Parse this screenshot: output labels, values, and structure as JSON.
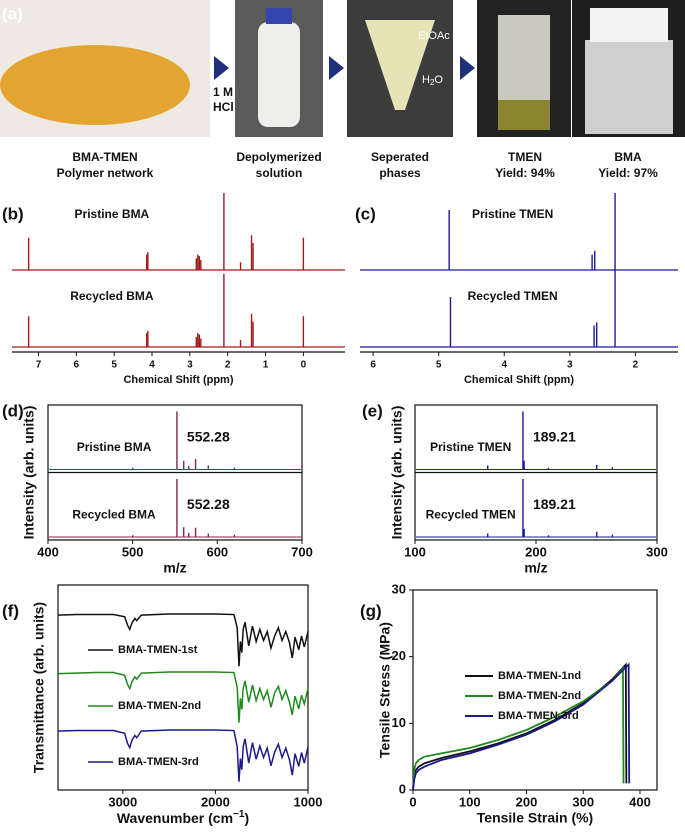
{
  "panel_a": {
    "label": "(a)",
    "reagent": [
      "1 M",
      "HCl"
    ],
    "phases": {
      "top": "EtOAc",
      "bottom": [
        "H",
        "2",
        "O"
      ]
    },
    "captions": [
      [
        "BMA-TMEN",
        "Polymer network"
      ],
      [
        "Depolymerized",
        "solution"
      ],
      [
        "Seperated",
        "phases"
      ],
      [
        "TMEN",
        "Yield: 94%"
      ],
      [
        "BMA",
        "Yield: 97%"
      ]
    ]
  },
  "chart_data": [
    {
      "type": "nmr",
      "panel": "(b)",
      "xlabel": "Chemical Shift (ppm)",
      "xlim": [
        7.7,
        -1.1
      ],
      "xticks": [
        7,
        6,
        5,
        4,
        3,
        2,
        1,
        0
      ],
      "series": [
        {
          "name": "Pristine BMA",
          "color": "#a11a1a",
          "x": [
            7.26,
            4.14,
            4.11,
            2.83,
            2.79,
            2.75,
            2.71,
            2.1,
            1.66,
            1.37,
            1.33,
            0
          ],
          "values": [
            0.42,
            0.2,
            0.23,
            0.15,
            0.2,
            0.18,
            0.13,
            1,
            0.1,
            0.45,
            0.35,
            0.42
          ]
        },
        {
          "name": "Recycled BMA",
          "color": "#a11a1a",
          "x": [
            7.26,
            4.14,
            4.11,
            2.83,
            2.79,
            2.75,
            2.71,
            2.1,
            1.66,
            1.37,
            1.33,
            0
          ],
          "values": [
            0.4,
            0.18,
            0.21,
            0.13,
            0.18,
            0.16,
            0.11,
            0.95,
            0.09,
            0.43,
            0.33,
            0.4
          ]
        }
      ]
    },
    {
      "type": "nmr",
      "panel": "(c)",
      "xlabel": "Chemical Shift (ppm)",
      "xlim": [
        6.2,
        1.35
      ],
      "xticks": [
        6,
        5,
        4,
        3,
        2
      ],
      "series": [
        {
          "name": "Pristine TMEN",
          "color": "#1a1a9a",
          "x": [
            4.84,
            2.66,
            2.62,
            2.31
          ],
          "values": [
            0.78,
            0.2,
            0.25,
            1
          ]
        },
        {
          "name": "Recycled TMEN",
          "color": "#1a1a9a",
          "x": [
            4.82,
            2.63,
            2.59,
            2.31
          ],
          "values": [
            0.65,
            0.28,
            0.32,
            1
          ]
        }
      ]
    },
    {
      "type": "ms",
      "panel": "(d)",
      "xlabel": "m/z",
      "ylabel": "Intensity (arb. units)",
      "xlim": [
        400,
        700
      ],
      "xticks": [
        400,
        500,
        600,
        700
      ],
      "series": [
        {
          "name": "Pristine BMA",
          "color": "#8b2252",
          "label": "552.28",
          "x": [
            552.28,
            560.3,
            566.2,
            574.3,
            589.3,
            620.2,
            500.1
          ],
          "values": [
            1,
            0.15,
            0.06,
            0.18,
            0.07,
            0.03,
            0.03
          ]
        },
        {
          "name": "Recycled BMA",
          "color": "#8b2252",
          "label": "552.28",
          "x": [
            552.28,
            560.3,
            566.2,
            574.3,
            589.3,
            620.2,
            500.1
          ],
          "values": [
            1,
            0.17,
            0.07,
            0.16,
            0.06,
            0.04,
            0.03
          ]
        }
      ]
    },
    {
      "type": "ms",
      "panel": "(e)",
      "xlabel": "m/z",
      "ylabel": "Intensity (arb. units)",
      "xlim": [
        100,
        300
      ],
      "xticks": [
        100,
        200,
        300
      ],
      "series": [
        {
          "name": "Pristine TMEN",
          "color": "#1a1a9a",
          "label": "189.21",
          "x": [
            189.21,
            160.1,
            190.2,
            250.2,
            263.1,
            210.3
          ],
          "values": [
            1,
            0.07,
            0.15,
            0.08,
            0.04,
            0.03
          ]
        },
        {
          "name": "Recycled TMEN",
          "color": "#1a1a9a",
          "label": "189.21",
          "x": [
            189.21,
            160.1,
            190.2,
            250.2,
            263.1,
            210.3
          ],
          "values": [
            1,
            0.06,
            0.14,
            0.09,
            0.04,
            0.03
          ]
        }
      ]
    },
    {
      "type": "ftir",
      "panel": "(f)",
      "xlabel": [
        "Wavenumber (cm",
        "−1",
        ")"
      ],
      "ylabel": "Transmittance (arb. units)",
      "xlim": [
        3700,
        1000
      ],
      "xticks": [
        3000,
        2000,
        1000
      ],
      "x": [
        3700,
        3500,
        3300,
        3100,
        2980,
        2950,
        2925,
        2900,
        2870,
        2850,
        2800,
        2500,
        2000,
        1800,
        1765,
        1745,
        1730,
        1715,
        1700,
        1680,
        1640,
        1600,
        1560,
        1520,
        1480,
        1440,
        1400,
        1360,
        1320,
        1280,
        1240,
        1200,
        1170,
        1140,
        1100,
        1070,
        1040,
        1000
      ],
      "series": [
        {
          "name": "BMA-TMEN-1st",
          "color": "#111111",
          "values": [
            0.98,
            0.99,
            0.99,
            0.99,
            0.95,
            0.8,
            0.72,
            0.84,
            0.92,
            0.88,
            0.98,
            1,
            1,
            0.99,
            0.75,
            0.05,
            0.5,
            0.3,
            0.72,
            0.85,
            0.42,
            0.78,
            0.5,
            0.72,
            0.52,
            0.68,
            0.38,
            0.6,
            0.75,
            0.52,
            0.68,
            0.48,
            0.2,
            0.58,
            0.35,
            0.6,
            0.4,
            0.68
          ]
        },
        {
          "name": "BMA-TMEN-2nd",
          "color": "#1f8a1f",
          "values": [
            0.97,
            0.98,
            0.99,
            0.99,
            0.94,
            0.78,
            0.7,
            0.83,
            0.91,
            0.87,
            0.98,
            1,
            1,
            0.99,
            0.72,
            0.08,
            0.52,
            0.32,
            0.7,
            0.84,
            0.45,
            0.76,
            0.48,
            0.7,
            0.5,
            0.66,
            0.36,
            0.62,
            0.74,
            0.5,
            0.66,
            0.45,
            0.22,
            0.56,
            0.33,
            0.58,
            0.42,
            0.7
          ]
        },
        {
          "name": "BMA-TMEN-3rd",
          "color": "#1a1a8a",
          "values": [
            0.98,
            0.99,
            0.99,
            0.99,
            0.94,
            0.76,
            0.68,
            0.82,
            0.9,
            0.86,
            0.98,
            1,
            1,
            0.99,
            0.7,
            0.06,
            0.48,
            0.28,
            0.7,
            0.84,
            0.4,
            0.77,
            0.47,
            0.71,
            0.5,
            0.67,
            0.35,
            0.6,
            0.74,
            0.5,
            0.67,
            0.46,
            0.18,
            0.57,
            0.34,
            0.59,
            0.4,
            0.69
          ]
        }
      ]
    },
    {
      "type": "line",
      "panel": "(g)",
      "xlabel": "Tensile Strain (%)",
      "ylabel": "Tensile Stress (MPa)",
      "xlim": [
        0,
        430
      ],
      "xticks": [
        0,
        100,
        200,
        300,
        400
      ],
      "ylim": [
        0,
        30
      ],
      "yticks": [
        0,
        10,
        20,
        30
      ],
      "series": [
        {
          "name": "BMA-TMEN-1nd",
          "color": "#111111",
          "x": [
            0,
            2,
            5,
            10,
            20,
            50,
            100,
            150,
            200,
            250,
            300,
            350,
            375,
            376
          ],
          "values": [
            0,
            2,
            3,
            3.5,
            4,
            4.8,
            5.8,
            7,
            8.5,
            10.5,
            13,
            16.5,
            18.8,
            1
          ]
        },
        {
          "name": "BMA-TMEN-2nd",
          "color": "#1f8a1f",
          "x": [
            0,
            2,
            5,
            10,
            20,
            50,
            100,
            150,
            200,
            250,
            300,
            350,
            370,
            371
          ],
          "values": [
            0,
            3,
            4,
            4.5,
            5,
            5.5,
            6.3,
            7.5,
            9,
            11,
            13.3,
            16.3,
            18.2,
            1
          ]
        },
        {
          "name": "BMA-TMEN-3rd",
          "color": "#1a1a8a",
          "x": [
            0,
            2,
            5,
            10,
            20,
            50,
            100,
            150,
            200,
            250,
            300,
            350,
            380,
            381
          ],
          "values": [
            0,
            1.5,
            2.5,
            3,
            3.5,
            4.5,
            5.5,
            6.8,
            8.3,
            10.3,
            12.8,
            16.3,
            18.8,
            1
          ]
        }
      ]
    }
  ]
}
